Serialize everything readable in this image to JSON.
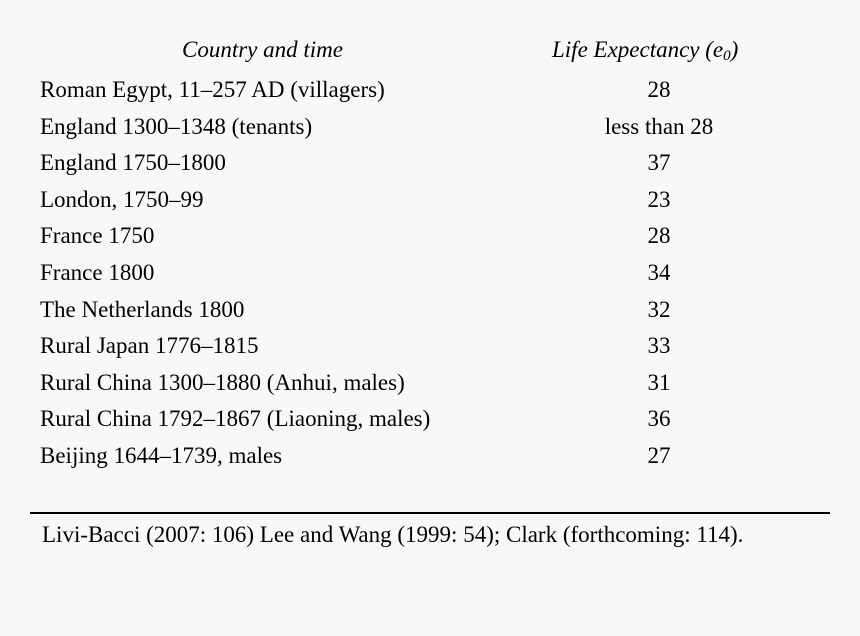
{
  "table": {
    "headers": {
      "country": "Country and time",
      "life_expectancy_prefix": "Life Expectancy (e",
      "life_expectancy_sub": "0",
      "life_expectancy_suffix": ")"
    },
    "rows": [
      {
        "country": "Roman Egypt, 11–257 AD (villagers)",
        "e0": "28"
      },
      {
        "country": "England 1300–1348 (tenants)",
        "e0": "less than 28"
      },
      {
        "country": "England 1750–1800",
        "e0": "37"
      },
      {
        "country": "London, 1750–99",
        "e0": "23"
      },
      {
        "country": "France 1750",
        "e0": "28"
      },
      {
        "country": "France 1800",
        "e0": "34"
      },
      {
        "country": "The Netherlands 1800",
        "e0": "32"
      },
      {
        "country": "Rural Japan 1776–1815",
        "e0": "33"
      },
      {
        "country": "Rural China 1300–1880 (Anhui, males)",
        "e0": "31"
      },
      {
        "country": "Rural China 1792–1867 (Liaoning, males)",
        "e0": "36"
      },
      {
        "country": "Beijing 1644–1739, males",
        "e0": "27"
      }
    ]
  },
  "source": "Livi-Bacci (2007: 106) Lee and Wang (1999: 54); Clark (forthcoming: 114)."
}
